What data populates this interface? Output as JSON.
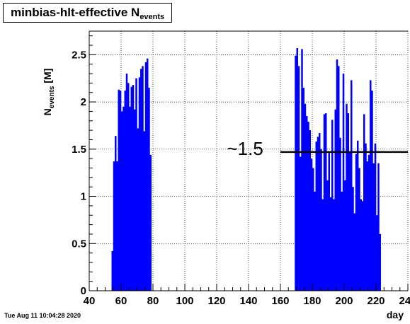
{
  "header": {
    "title_main": "minbias-hlt-effective N",
    "title_sub": "events"
  },
  "footer": {
    "date": "Tue Aug 11 10:04:28 2020"
  },
  "colors": {
    "bar": "#0000ff",
    "grid": "#000000",
    "reference_line": "#000000"
  },
  "chart_data": {
    "type": "bar",
    "xlabel": "day",
    "ylabel_main": "N",
    "ylabel_sub": "events",
    "ylabel_unit": " [M]",
    "xlim": [
      40,
      240
    ],
    "ylim": [
      0,
      2.75
    ],
    "xticks": [
      40,
      60,
      80,
      100,
      120,
      140,
      160,
      180,
      200,
      220,
      240
    ],
    "xtick_labels": [
      "40",
      "60",
      "80",
      "100",
      "120",
      "140",
      "160",
      "180",
      "200",
      "220",
      "240"
    ],
    "yticks": [
      0,
      0.5,
      1,
      1.5,
      2,
      2.5
    ],
    "ytick_labels": [
      "0",
      "0.5",
      "1",
      "1.5",
      "2",
      "2.5"
    ],
    "grid": true,
    "bin_width": 1,
    "bins": [
      {
        "x": 54,
        "y": 0.42
      },
      {
        "x": 55,
        "y": 1.37
      },
      {
        "x": 56,
        "y": 1.64
      },
      {
        "x": 57,
        "y": 1.37
      },
      {
        "x": 58,
        "y": 2.13
      },
      {
        "x": 59,
        "y": 2.12
      },
      {
        "x": 60,
        "y": 1.9
      },
      {
        "x": 61,
        "y": 1.95
      },
      {
        "x": 62,
        "y": 2.12
      },
      {
        "x": 63,
        "y": 2.3
      },
      {
        "x": 64,
        "y": 2.2
      },
      {
        "x": 65,
        "y": 1.95
      },
      {
        "x": 66,
        "y": 2.16
      },
      {
        "x": 67,
        "y": 2.18
      },
      {
        "x": 68,
        "y": 1.92
      },
      {
        "x": 69,
        "y": 2.25
      },
      {
        "x": 70,
        "y": 1.72
      },
      {
        "x": 71,
        "y": 2.26
      },
      {
        "x": 72,
        "y": 2.35
      },
      {
        "x": 73,
        "y": 2.38
      },
      {
        "x": 74,
        "y": 1.69
      },
      {
        "x": 75,
        "y": 2.42
      },
      {
        "x": 76,
        "y": 2.46
      },
      {
        "x": 77,
        "y": 2.15
      },
      {
        "x": 78,
        "y": 1.44
      },
      {
        "x": 169,
        "y": 2.49
      },
      {
        "x": 170,
        "y": 2.57
      },
      {
        "x": 171,
        "y": 2.38
      },
      {
        "x": 172,
        "y": 1.42
      },
      {
        "x": 173,
        "y": 2.56
      },
      {
        "x": 174,
        "y": 2.15
      },
      {
        "x": 175,
        "y": 1.98
      },
      {
        "x": 176,
        "y": 1.85
      },
      {
        "x": 177,
        "y": 1.79
      },
      {
        "x": 178,
        "y": 1.7
      },
      {
        "x": 179,
        "y": 1.4
      },
      {
        "x": 180,
        "y": 1.3
      },
      {
        "x": 181,
        "y": 1.05
      },
      {
        "x": 182,
        "y": 1.58
      },
      {
        "x": 183,
        "y": 1.63
      },
      {
        "x": 184,
        "y": 1.67
      },
      {
        "x": 185,
        "y": 1.5
      },
      {
        "x": 186,
        "y": 0.97
      },
      {
        "x": 187,
        "y": 1.87
      },
      {
        "x": 188,
        "y": 1.88
      },
      {
        "x": 189,
        "y": 1.17
      },
      {
        "x": 190,
        "y": 1.46
      },
      {
        "x": 191,
        "y": 0.99
      },
      {
        "x": 192,
        "y": 1.81
      },
      {
        "x": 193,
        "y": 0.97
      },
      {
        "x": 194,
        "y": 1.92
      },
      {
        "x": 195,
        "y": 2.45
      },
      {
        "x": 196,
        "y": 2.38
      },
      {
        "x": 197,
        "y": 1.62
      },
      {
        "x": 198,
        "y": 1.05
      },
      {
        "x": 199,
        "y": 2.3
      },
      {
        "x": 200,
        "y": 1.17
      },
      {
        "x": 201,
        "y": 1.98
      },
      {
        "x": 202,
        "y": 1.88
      },
      {
        "x": 203,
        "y": 1.47
      },
      {
        "x": 204,
        "y": 2.23
      },
      {
        "x": 205,
        "y": 1.1
      },
      {
        "x": 206,
        "y": 0.82
      },
      {
        "x": 207,
        "y": 1.45
      },
      {
        "x": 208,
        "y": 1.59
      },
      {
        "x": 209,
        "y": 1.3
      },
      {
        "x": 210,
        "y": 0.97
      },
      {
        "x": 211,
        "y": 0.95
      },
      {
        "x": 212,
        "y": 1.87
      },
      {
        "x": 213,
        "y": 1.56
      },
      {
        "x": 214,
        "y": 1.37
      },
      {
        "x": 215,
        "y": 1.44
      },
      {
        "x": 216,
        "y": 2.23
      },
      {
        "x": 217,
        "y": 2.12
      },
      {
        "x": 218,
        "y": 1.35
      },
      {
        "x": 219,
        "y": 1.56
      },
      {
        "x": 220,
        "y": 0.8
      },
      {
        "x": 221,
        "y": 1.35
      },
      {
        "x": 222,
        "y": 0.6
      }
    ],
    "reference_line": {
      "y": 1.47,
      "x_start": 160,
      "x_end": 240
    },
    "annotation": {
      "text": "~1.5",
      "x": 130,
      "y": 1.5
    }
  }
}
